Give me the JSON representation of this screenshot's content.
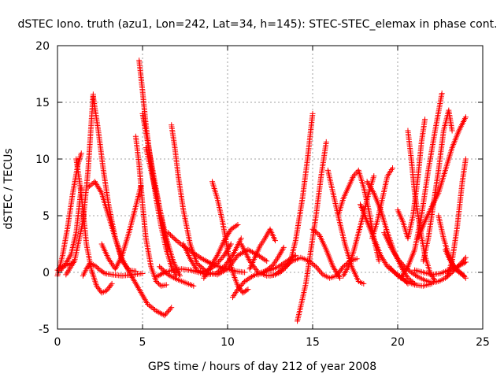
{
  "chart_data": {
    "type": "scatter",
    "title": "dSTEC Iono. truth (azu1, Lon=242, Lat=34, h=145): STEC-STEC_elemax in phase cont.",
    "xlabel": "GPS time / hours of day 212 of year 2008",
    "ylabel": "dSTEC  / TECUs",
    "xlim": [
      0,
      25
    ],
    "ylim": [
      -5,
      20
    ],
    "xticks": [
      0,
      5,
      10,
      15,
      20,
      25
    ],
    "yticks": [
      -5,
      0,
      5,
      10,
      15,
      20
    ],
    "xtick_labels": [
      "0",
      "5",
      "10",
      "15",
      "20",
      "25"
    ],
    "ytick_labels": [
      "-5",
      "0",
      "5",
      "10",
      "15",
      "20"
    ],
    "grid": true,
    "marker": "+",
    "color": "#ff0000",
    "series": [
      {
        "x": [
          0.0,
          0.3,
          0.6,
          0.9,
          1.2,
          1.4
        ],
        "y": [
          -0.3,
          1.5,
          4.0,
          7.0,
          9.5,
          10.5
        ]
      },
      {
        "x": [
          1.1,
          1.3,
          1.5,
          1.7,
          2.0,
          2.3,
          2.6,
          2.9,
          3.2
        ],
        "y": [
          10.0,
          8.0,
          5.5,
          2.5,
          0.2,
          -1.2,
          -1.8,
          -1.6,
          -1.0
        ]
      },
      {
        "x": [
          0.2,
          0.5,
          0.8,
          1.1,
          1.4
        ],
        "y": [
          0.2,
          0.8,
          1.6,
          3.5,
          7.5
        ]
      },
      {
        "x": [
          0.0,
          0.2,
          0.5,
          0.8,
          1.0
        ],
        "y": [
          0.2,
          0.5,
          0.6,
          0.8,
          1.0
        ]
      },
      {
        "x": [
          0.5,
          1.0,
          1.5,
          1.8,
          2.1
        ],
        "y": [
          -0.2,
          1.0,
          4.5,
          9.0,
          15.7
        ]
      },
      {
        "x": [
          2.1,
          2.4,
          2.7,
          3.0,
          3.4,
          3.8,
          4.2,
          4.6
        ],
        "y": [
          15.5,
          12.5,
          9.0,
          6.0,
          3.0,
          1.0,
          0.2,
          0.1
        ]
      },
      {
        "x": [
          1.8,
          2.2,
          2.6,
          3.0,
          3.4,
          3.8,
          4.3,
          4.8,
          5.3,
          5.8,
          6.3,
          6.7
        ],
        "y": [
          7.5,
          8.0,
          7.0,
          5.0,
          3.0,
          1.2,
          -0.2,
          -1.5,
          -2.8,
          -3.4,
          -3.8,
          -3.1
        ]
      },
      {
        "x": [
          1.5,
          1.7,
          1.9,
          2.2,
          2.5,
          2.8,
          3.2,
          3.8,
          4.4,
          5.0
        ],
        "y": [
          -0.3,
          0.3,
          0.8,
          0.6,
          0.2,
          -0.1,
          -0.2,
          -0.3,
          -0.2,
          -0.1
        ]
      },
      {
        "x": [
          2.6,
          3.0,
          3.4,
          3.8,
          4.2,
          4.6,
          4.9
        ],
        "y": [
          2.5,
          1.2,
          0.3,
          1.5,
          3.5,
          5.8,
          7.6
        ]
      },
      {
        "x": [
          4.6,
          4.8,
          5.0,
          5.2,
          5.5,
          5.8,
          6.1,
          6.4
        ],
        "y": [
          12.0,
          9.5,
          6.0,
          3.0,
          0.5,
          -0.8,
          -1.2,
          -1.1
        ]
      },
      {
        "x": [
          4.8,
          5.0,
          5.2,
          5.5,
          5.8,
          6.1,
          6.4,
          6.7,
          7.0
        ],
        "y": [
          18.7,
          16.0,
          13.0,
          9.5,
          6.5,
          4.0,
          2.0,
          0.5,
          -0.3
        ]
      },
      {
        "x": [
          5.0,
          5.3,
          5.6,
          5.9,
          6.2,
          6.5
        ],
        "y": [
          14.0,
          11.5,
          9.0,
          6.5,
          4.0,
          2.0
        ]
      },
      {
        "x": [
          5.2,
          5.5,
          5.8,
          6.1,
          6.4,
          6.8,
          7.2
        ],
        "y": [
          11.0,
          9.0,
          7.0,
          5.0,
          3.0,
          1.0,
          -0.3
        ]
      },
      {
        "x": [
          6.7,
          6.9,
          7.1,
          7.4,
          7.8,
          8.2,
          8.8,
          9.4,
          10.0,
          10.6,
          11.2,
          11.8,
          12.3
        ],
        "y": [
          13.0,
          11.0,
          8.5,
          5.5,
          2.5,
          0.8,
          0.0,
          -0.2,
          0.3,
          1.5,
          2.0,
          1.5,
          1.0
        ]
      },
      {
        "x": [
          7.4,
          7.8,
          8.2,
          8.6,
          9.0,
          9.4,
          9.8,
          10.2
        ],
        "y": [
          2.5,
          1.2,
          0.2,
          0.0,
          0.3,
          0.8,
          1.5,
          2.5
        ]
      },
      {
        "x": [
          6.5,
          7.0,
          7.5,
          8.0,
          8.5,
          9.0,
          9.5,
          10.0,
          10.5,
          11.0
        ],
        "y": [
          3.5,
          2.8,
          2.2,
          1.7,
          1.2,
          0.8,
          0.5,
          0.3,
          0.1,
          0.0
        ]
      },
      {
        "x": [
          5.8,
          6.3,
          6.8,
          7.3,
          7.8,
          8.3,
          8.8,
          9.3,
          9.8,
          10.3,
          10.8
        ],
        "y": [
          -0.4,
          0.0,
          0.2,
          0.3,
          0.2,
          0.0,
          -0.2,
          -0.1,
          0.5,
          1.5,
          3.0
        ]
      },
      {
        "x": [
          6.0,
          6.5,
          7.0,
          7.5,
          8.0
        ],
        "y": [
          0.5,
          -0.2,
          -0.6,
          -0.9,
          -1.2
        ]
      },
      {
        "x": [
          9.1,
          9.4,
          9.7,
          10.0,
          10.3,
          10.6,
          10.9,
          11.2
        ],
        "y": [
          8.0,
          6.5,
          4.5,
          2.0,
          0.0,
          -1.2,
          -1.8,
          -1.5
        ]
      },
      {
        "x": [
          8.6,
          9.0,
          9.4,
          9.8,
          10.2,
          10.6
        ],
        "y": [
          -0.5,
          0.5,
          1.5,
          2.8,
          3.8,
          4.2
        ]
      },
      {
        "x": [
          10.3,
          10.6,
          11.0,
          11.5,
          12.0,
          12.5,
          13.0,
          13.5,
          14.0
        ],
        "y": [
          -2.2,
          -1.5,
          -0.8,
          -0.3,
          0.0,
          0.2,
          0.5,
          1.0,
          1.5
        ]
      },
      {
        "x": [
          10.8,
          11.3,
          11.8,
          12.3,
          12.8,
          13.3,
          13.8,
          14.3,
          14.8
        ],
        "y": [
          2.5,
          1.0,
          0.0,
          -0.3,
          -0.2,
          0.4,
          1.0,
          1.3,
          1.0
        ]
      },
      {
        "x": [
          11.3,
          11.6,
          11.9,
          12.2,
          12.5,
          12.8
        ],
        "y": [
          0.3,
          1.3,
          2.3,
          3.0,
          3.8,
          2.8
        ]
      },
      {
        "x": [
          11.8,
          12.1,
          12.4,
          12.7,
          13.0,
          13.3
        ],
        "y": [
          -0.2,
          0.0,
          0.3,
          0.7,
          1.4,
          2.2
        ]
      },
      {
        "x": [
          12.5,
          12.8,
          13.1,
          13.4,
          13.7,
          14.0,
          14.4,
          14.7,
          15.0
        ],
        "y": [
          -0.3,
          -0.2,
          0.0,
          0.4,
          1.0,
          2.8,
          6.5,
          10.0,
          14.0
        ]
      },
      {
        "x": [
          14.1,
          14.3,
          14.6,
          14.9,
          15.2,
          15.5,
          15.8
        ],
        "y": [
          -4.3,
          -3.0,
          -1.0,
          2.0,
          5.0,
          8.5,
          11.5
        ]
      },
      {
        "x": [
          14.8,
          15.2,
          15.6,
          16.0,
          16.4,
          16.8,
          17.2,
          17.6
        ],
        "y": [
          1.0,
          0.5,
          -0.2,
          -0.5,
          -0.3,
          0.5,
          1.0,
          1.2
        ]
      },
      {
        "x": [
          15.0,
          15.4,
          15.8,
          16.2,
          16.6
        ],
        "y": [
          3.8,
          3.3,
          2.0,
          0.5,
          -0.5
        ]
      },
      {
        "x": [
          15.9,
          16.2,
          16.5,
          16.9,
          17.3,
          17.7,
          18.0
        ],
        "y": [
          9.0,
          7.0,
          5.0,
          2.5,
          0.5,
          -0.8,
          -1.0
        ]
      },
      {
        "x": [
          16.5,
          16.8,
          17.1,
          17.4,
          17.7,
          18.0,
          18.3,
          18.6,
          18.9
        ],
        "y": [
          5.0,
          6.5,
          7.5,
          8.5,
          9.0,
          7.5,
          5.5,
          3.0,
          1.0
        ]
      },
      {
        "x": [
          16.8,
          17.1,
          17.4,
          17.7,
          18.0,
          18.3,
          18.6
        ],
        "y": [
          -0.3,
          0.5,
          1.8,
          3.5,
          5.2,
          7.0,
          8.5
        ]
      },
      {
        "x": [
          17.8,
          18.2,
          18.6,
          19.0,
          19.4,
          19.8,
          20.2,
          20.6
        ],
        "y": [
          6.0,
          4.5,
          3.0,
          1.5,
          0.5,
          0.0,
          -0.4,
          -1.0
        ]
      },
      {
        "x": [
          18.2,
          18.6,
          19.0,
          19.4,
          19.8,
          20.2,
          20.6,
          21.0
        ],
        "y": [
          8.0,
          7.0,
          5.5,
          3.5,
          1.8,
          0.5,
          -0.5,
          -1.0
        ]
      },
      {
        "x": [
          18.5,
          18.8,
          19.1,
          19.4,
          19.7
        ],
        "y": [
          3.0,
          4.5,
          6.5,
          8.5,
          9.2
        ]
      },
      {
        "x": [
          19.2,
          19.6,
          20.0,
          20.4,
          20.8,
          21.2,
          21.6,
          22.0,
          22.4,
          22.8,
          23.2,
          23.6,
          24.0
        ],
        "y": [
          3.5,
          2.2,
          1.2,
          0.5,
          0.0,
          -0.4,
          -0.7,
          -0.9,
          -0.8,
          -0.5,
          0.0,
          0.6,
          1.3
        ]
      },
      {
        "x": [
          19.5,
          20.0,
          20.5,
          21.0,
          21.5,
          22.0
        ],
        "y": [
          0.5,
          -0.3,
          -0.8,
          -1.1,
          -1.2,
          -1.0
        ]
      },
      {
        "x": [
          20.0,
          20.3,
          20.6,
          20.9,
          21.2,
          21.4,
          21.6
        ],
        "y": [
          5.5,
          4.5,
          3.0,
          5.0,
          8.5,
          11.5,
          13.5
        ]
      },
      {
        "x": [
          20.6,
          20.8,
          21.0,
          21.3,
          21.6,
          21.9,
          22.2
        ],
        "y": [
          12.5,
          10.0,
          7.0,
          4.0,
          1.5,
          0.0,
          -0.8
        ]
      },
      {
        "x": [
          20.2,
          20.6,
          21.0,
          21.4,
          21.8,
          22.2,
          22.6
        ],
        "y": [
          -0.5,
          0.5,
          2.0,
          5.0,
          9.0,
          12.5,
          15.8
        ]
      },
      {
        "x": [
          21.2,
          21.6,
          22.0,
          22.4,
          22.8,
          23.2,
          23.6,
          24.0
        ],
        "y": [
          3.0,
          4.5,
          5.8,
          7.0,
          9.0,
          11.0,
          12.5,
          13.7
        ]
      },
      {
        "x": [
          21.5,
          21.8,
          22.1,
          22.4,
          22.7,
          23.0,
          23.2
        ],
        "y": [
          1.0,
          3.0,
          6.0,
          9.0,
          12.5,
          14.3,
          12.5
        ]
      },
      {
        "x": [
          22.4,
          22.7,
          23.0,
          23.3,
          23.6,
          23.9
        ],
        "y": [
          5.0,
          3.0,
          1.5,
          0.5,
          0.0,
          -0.3
        ]
      },
      {
        "x": [
          22.8,
          23.1,
          23.4,
          23.7,
          24.0
        ],
        "y": [
          2.0,
          1.0,
          0.3,
          0.0,
          -0.5
        ]
      },
      {
        "x": [
          22.9,
          23.2,
          23.5,
          23.8,
          24.0
        ],
        "y": [
          -0.4,
          1.0,
          4.0,
          8.0,
          10.0
        ]
      },
      {
        "x": [
          21.0,
          21.5,
          22.0,
          22.5,
          23.0,
          23.5,
          24.0
        ],
        "y": [
          0.2,
          0.0,
          -0.2,
          -0.1,
          0.2,
          0.5,
          0.9
        ]
      }
    ]
  }
}
